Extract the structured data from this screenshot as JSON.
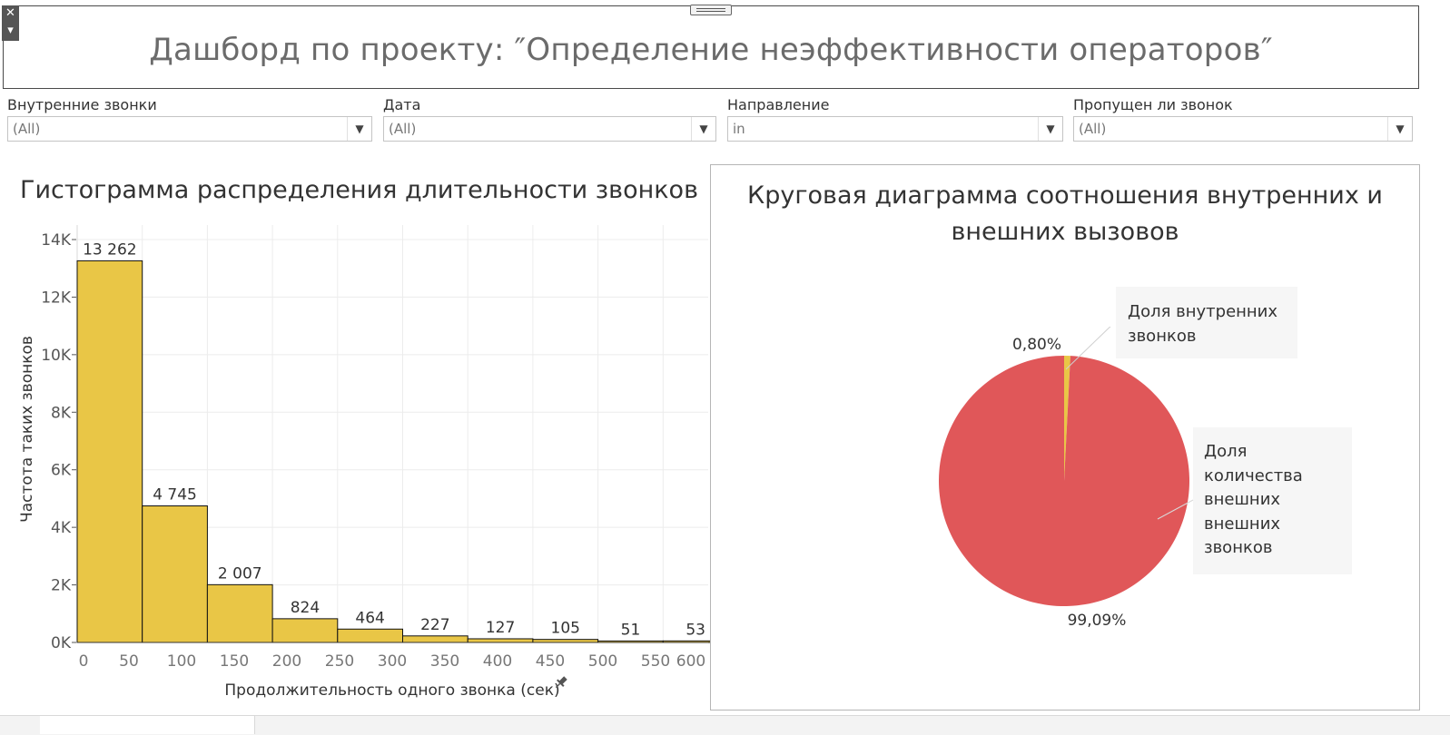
{
  "dashboard": {
    "title": "Дашборд по проекту: ″Определение неэффективности операторов″",
    "close_glyph": "✕",
    "menu_glyph": "▾"
  },
  "filters": [
    {
      "label": "Внутренние звонки",
      "value": "(All)"
    },
    {
      "label": "Дата",
      "value": "(All)"
    },
    {
      "label": "Направление",
      "value": "in"
    },
    {
      "label": "Пропущен ли звонок",
      "value": "(All)"
    }
  ],
  "histogram": {
    "title": "Гистограмма распределения длительности звонков",
    "xlabel": "Продолжительность одного звонка (сек)",
    "ylabel": "Частота таких звонков",
    "pin_icon": "pin-icon"
  },
  "pie": {
    "title_line1": "Круговая диаграмма соотношения внутренних и",
    "title_line2": "внешних вызовов",
    "callout_internal": [
      "Доля внутренних",
      "звонков"
    ],
    "callout_external": [
      "Доля",
      "количества",
      "внешних",
      "внешних",
      "звонков"
    ]
  },
  "colors": {
    "bar": "#E9C646",
    "pie_external": "#E05759",
    "pie_internal": "#E9C646",
    "grid": "#ececec"
  },
  "chart_data": [
    {
      "type": "bar",
      "title": "Гистограмма распределения длительности звонков",
      "xlabel": "Продолжительность одного звонка (сек)",
      "ylabel": "Частота таких звонков",
      "bins": [
        [
          0,
          50
        ],
        [
          50,
          100
        ],
        [
          100,
          150
        ],
        [
          150,
          200
        ],
        [
          200,
          250
        ],
        [
          250,
          300
        ],
        [
          300,
          350
        ],
        [
          350,
          400
        ],
        [
          400,
          450
        ],
        [
          450,
          500
        ]
      ],
      "values": [
        13262,
        4745,
        2007,
        824,
        464,
        227,
        127,
        105,
        51,
        53
      ],
      "value_labels": [
        "13 262",
        "4 745",
        "2 007",
        "824",
        "464",
        "227",
        "127",
        "105",
        "51",
        "53"
      ],
      "x_ticks": [
        "0",
        "50",
        "100",
        "150",
        "200",
        "250",
        "300",
        "350",
        "400",
        "450",
        "500",
        "550",
        "600"
      ],
      "y_ticks": [
        "0K",
        "2K",
        "4K",
        "6K",
        "8K",
        "10K",
        "12K",
        "14K"
      ],
      "ylim": [
        0,
        14000
      ],
      "grid": true
    },
    {
      "type": "pie",
      "title": "Круговая диаграмма соотношения внутренних и внешних вызовов",
      "slices": [
        {
          "name": "Доля внутренних звонков",
          "value": 0.8,
          "label": "0,80%"
        },
        {
          "name": "Доля количества внешних внешних звонков",
          "value": 99.09,
          "label": "99,09%"
        }
      ]
    }
  ]
}
